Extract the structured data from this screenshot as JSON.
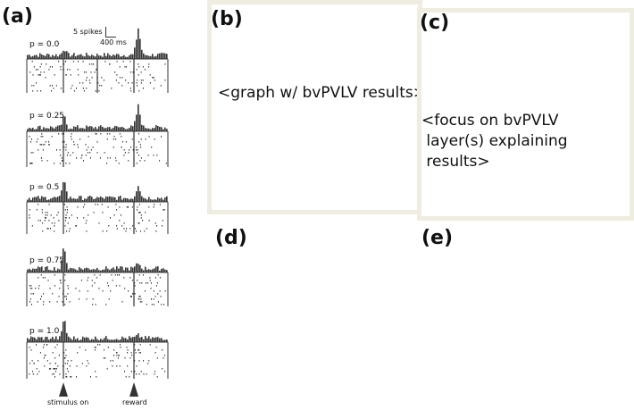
{
  "panels": {
    "a": {
      "label": "(a)"
    },
    "b": {
      "label": "(b)",
      "text": "<graph w/ bvPVLV results>"
    },
    "c": {
      "label": "(c)",
      "text": "<focus on bvPVLV\n layer(s) explaining\n results>"
    },
    "d": {
      "label": "(d)"
    },
    "e": {
      "label": "(e)"
    }
  },
  "raster": {
    "scale_spikes": "5 spikes",
    "scale_time": "400 ms",
    "probabilities": [
      "p = 0.0",
      "p = 0.25",
      "p = 0.5",
      "p = 0.75",
      "p = 1.0"
    ],
    "stimulus_label": "stimulus on",
    "reward_label": "reward"
  },
  "colors": {
    "box_border": "#efece0",
    "spike": "#333333"
  }
}
